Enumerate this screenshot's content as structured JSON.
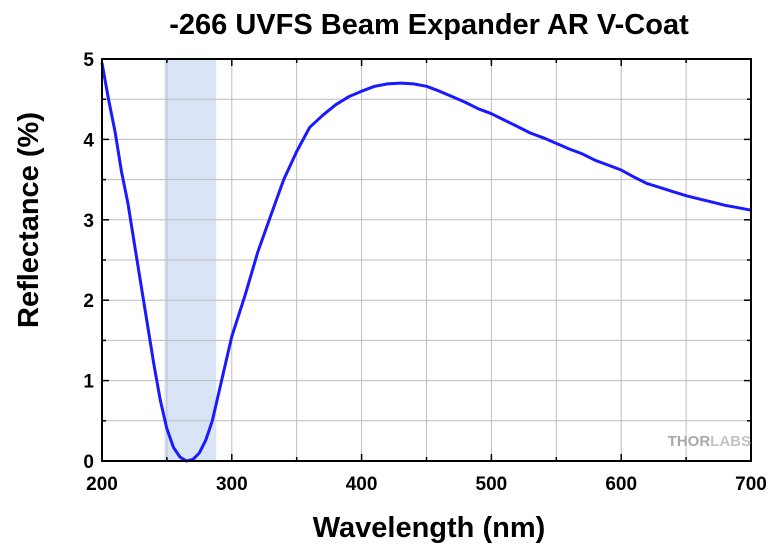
{
  "chart_data": {
    "type": "line",
    "title": "-266 UVFS Beam Expander AR V-Coat",
    "xlabel": "Wavelength (nm)",
    "ylabel": "Reflectance (%)",
    "xlim": [
      200,
      700
    ],
    "ylim": [
      0,
      5
    ],
    "xticks": [
      "200",
      "300",
      "400",
      "500",
      "600",
      "700"
    ],
    "yticks": [
      "0",
      "1",
      "2",
      "3",
      "4",
      "5"
    ],
    "grid": true,
    "shaded_band": [
      248,
      288
    ],
    "colors": {
      "line": "#1a1aff",
      "band": "#dae4f7",
      "grid": "#bdbdbd"
    },
    "series": [
      {
        "name": "",
        "x": [
          200,
          205,
          210,
          215,
          220,
          225,
          230,
          235,
          240,
          245,
          250,
          255,
          260,
          265,
          270,
          275,
          280,
          285,
          290,
          300,
          310,
          320,
          330,
          340,
          350,
          360,
          370,
          380,
          390,
          400,
          410,
          420,
          430,
          440,
          450,
          460,
          470,
          480,
          490,
          500,
          510,
          520,
          530,
          540,
          550,
          560,
          570,
          580,
          590,
          600,
          610,
          620,
          630,
          640,
          650,
          660,
          670,
          680,
          690,
          700
        ],
        "y": [
          4.95,
          4.5,
          4.1,
          3.6,
          3.2,
          2.7,
          2.2,
          1.7,
          1.2,
          0.75,
          0.4,
          0.17,
          0.05,
          0.0,
          0.02,
          0.1,
          0.26,
          0.5,
          0.85,
          1.55,
          2.05,
          2.6,
          3.05,
          3.5,
          3.85,
          4.15,
          4.3,
          4.43,
          4.53,
          4.6,
          4.66,
          4.69,
          4.7,
          4.69,
          4.66,
          4.6,
          4.53,
          4.46,
          4.38,
          4.32,
          4.24,
          4.16,
          4.08,
          4.02,
          3.95,
          3.88,
          3.82,
          3.74,
          3.68,
          3.62,
          3.53,
          3.45,
          3.4,
          3.35,
          3.3,
          3.26,
          3.22,
          3.18,
          3.15,
          3.12
        ]
      }
    ]
  },
  "watermark": {
    "part1": "THOR",
    "part2": "LABS"
  }
}
